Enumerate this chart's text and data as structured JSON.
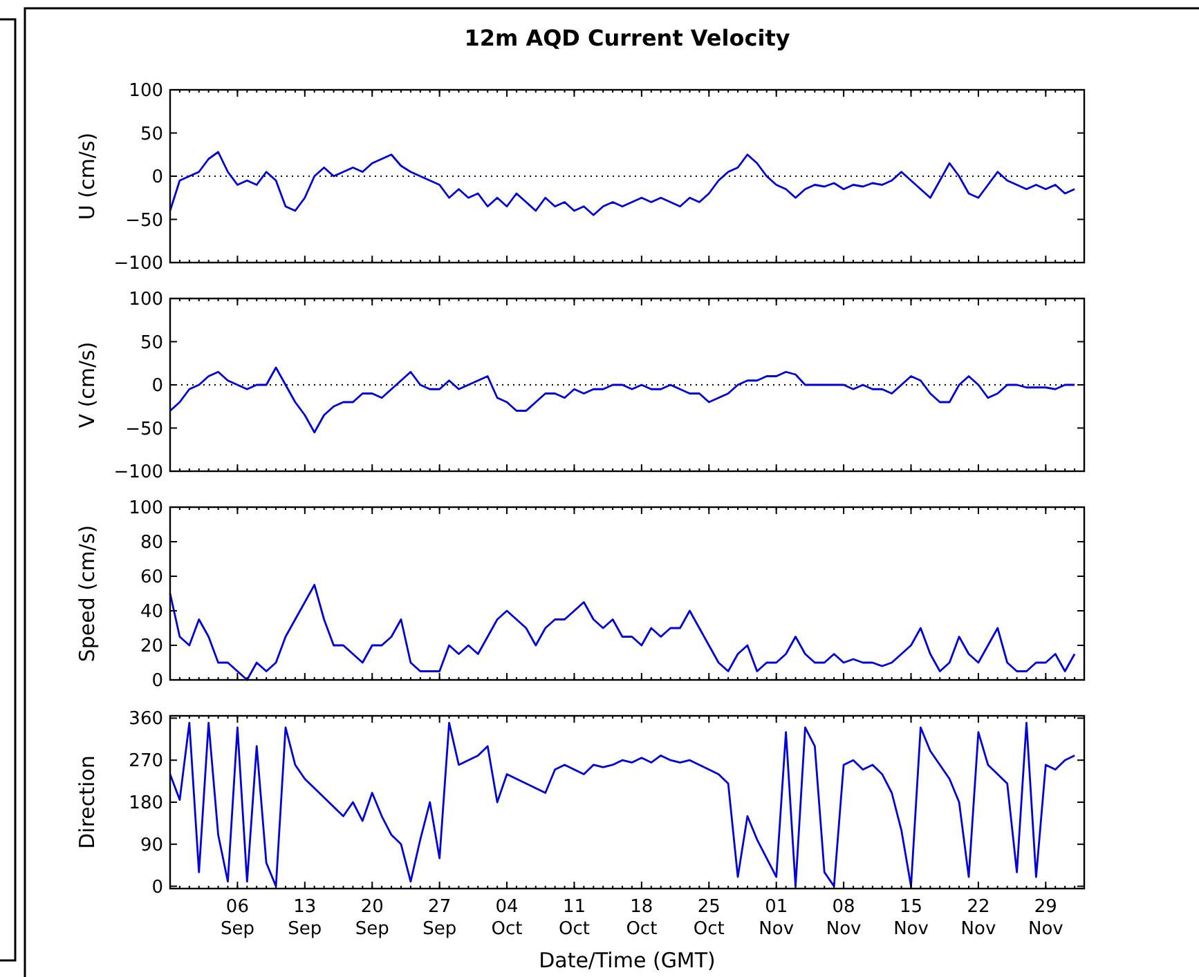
{
  "chart_data": [
    {
      "type": "line",
      "title": "12m AQD Current Velocity",
      "ylabel": "U (cm/s)",
      "tick_labels": "y",
      "xlim": [
        "--08-30",
        "--12-03"
      ],
      "ylim": [
        -100,
        100
      ],
      "yticks": [
        -100,
        -50,
        0,
        50,
        100
      ],
      "xticks": [
        {
          "value": "--09-06",
          "label": null
        },
        {
          "value": "--09-13",
          "label": null
        },
        {
          "value": "--09-20",
          "label": null
        },
        {
          "value": "--09-27",
          "label": null
        },
        {
          "value": "--10-04",
          "label": null
        },
        {
          "value": "--10-11",
          "label": null
        },
        {
          "value": "--10-18",
          "label": null
        },
        {
          "value": "--10-25",
          "label": null
        },
        {
          "value": "--11-01",
          "label": null
        },
        {
          "value": "--11-08",
          "label": null
        },
        {
          "value": "--11-15",
          "label": null
        },
        {
          "value": "--11-22",
          "label": null
        },
        {
          "value": "--11-29",
          "label": null
        }
      ],
      "ref_lines": [
        {
          "axis": "y",
          "value": 0,
          "line_style": "dotted",
          "color": "#000000"
        }
      ],
      "x": [
        "--08-30",
        "--08-31",
        "--09-01",
        "--09-02",
        "--09-03",
        "--09-04",
        "--09-05",
        "--09-06",
        "--09-07",
        "--09-08",
        "--09-09",
        "--09-10",
        "--09-11",
        "--09-12",
        "--09-13",
        "--09-14",
        "--09-15",
        "--09-16",
        "--09-17",
        "--09-18",
        "--09-19",
        "--09-20",
        "--09-21",
        "--09-22",
        "--09-23",
        "--09-24",
        "--09-25",
        "--09-26",
        "--09-27",
        "--09-28",
        "--09-29",
        "--09-30",
        "--10-01",
        "--10-02",
        "--10-03",
        "--10-04",
        "--10-05",
        "--10-06",
        "--10-07",
        "--10-08",
        "--10-09",
        "--10-10",
        "--10-11",
        "--10-12",
        "--10-13",
        "--10-14",
        "--10-15",
        "--10-16",
        "--10-17",
        "--10-18",
        "--10-19",
        "--10-20",
        "--10-21",
        "--10-22",
        "--10-23",
        "--10-24",
        "--10-25",
        "--10-26",
        "--10-27",
        "--10-28",
        "--10-29",
        "--10-30",
        "--10-31",
        "--11-01",
        "--11-02",
        "--11-03",
        "--11-04",
        "--11-05",
        "--11-06",
        "--11-07",
        "--11-08",
        "--11-09",
        "--11-10",
        "--11-11",
        "--11-12",
        "--11-13",
        "--11-14",
        "--11-15",
        "--11-16",
        "--11-17",
        "--11-18",
        "--11-19",
        "--11-20",
        "--11-21",
        "--11-22",
        "--11-23",
        "--11-24",
        "--11-25",
        "--11-26",
        "--11-27",
        "--11-28",
        "--11-29",
        "--11-30",
        "--12-01",
        "--12-02"
      ],
      "series": [
        {
          "color": "#0000dd",
          "values": [
            -40,
            -5,
            0,
            5,
            20,
            28,
            5,
            -10,
            -5,
            -10,
            5,
            -5,
            -35,
            -40,
            -25,
            0,
            10,
            0,
            5,
            10,
            5,
            15,
            20,
            25,
            12,
            5,
            0,
            -5,
            -10,
            -25,
            -15,
            -25,
            -20,
            -35,
            -25,
            -35,
            -20,
            -30,
            -40,
            -25,
            -35,
            -30,
            -40,
            -35,
            -45,
            -35,
            -30,
            -35,
            -30,
            -25,
            -30,
            -25,
            -30,
            -35,
            -25,
            -30,
            -20,
            -5,
            5,
            10,
            25,
            15,
            0,
            -10,
            -15,
            -25,
            -15,
            -10,
            -12,
            -8,
            -15,
            -10,
            -12,
            -8,
            -10,
            -5,
            5,
            -5,
            -15,
            -25,
            -5,
            15,
            0,
            -20,
            -25,
            -10,
            5,
            -5,
            -10,
            -15,
            -10,
            -15,
            -10,
            -20,
            -15
          ]
        }
      ]
    },
    {
      "type": "line",
      "ylabel": "V (cm/s)",
      "tick_labels": "y",
      "xlim": [
        "--08-30",
        "--12-03"
      ],
      "ylim": [
        -100,
        100
      ],
      "yticks": [
        -100,
        -50,
        0,
        50,
        100
      ],
      "xticks": [
        {
          "value": "--09-06",
          "label": null
        },
        {
          "value": "--09-13",
          "label": null
        },
        {
          "value": "--09-20",
          "label": null
        },
        {
          "value": "--09-27",
          "label": null
        },
        {
          "value": "--10-04",
          "label": null
        },
        {
          "value": "--10-11",
          "label": null
        },
        {
          "value": "--10-18",
          "label": null
        },
        {
          "value": "--10-25",
          "label": null
        },
        {
          "value": "--11-01",
          "label": null
        },
        {
          "value": "--11-08",
          "label": null
        },
        {
          "value": "--11-15",
          "label": null
        },
        {
          "value": "--11-22",
          "label": null
        },
        {
          "value": "--11-29",
          "label": null
        }
      ],
      "ref_lines": [
        {
          "axis": "y",
          "value": 0,
          "line_style": "dotted",
          "color": "#000000"
        }
      ],
      "x": [
        "--08-30",
        "--08-31",
        "--09-01",
        "--09-02",
        "--09-03",
        "--09-04",
        "--09-05",
        "--09-06",
        "--09-07",
        "--09-08",
        "--09-09",
        "--09-10",
        "--09-11",
        "--09-12",
        "--09-13",
        "--09-14",
        "--09-15",
        "--09-16",
        "--09-17",
        "--09-18",
        "--09-19",
        "--09-20",
        "--09-21",
        "--09-22",
        "--09-23",
        "--09-24",
        "--09-25",
        "--09-26",
        "--09-27",
        "--09-28",
        "--09-29",
        "--09-30",
        "--10-01",
        "--10-02",
        "--10-03",
        "--10-04",
        "--10-05",
        "--10-06",
        "--10-07",
        "--10-08",
        "--10-09",
        "--10-10",
        "--10-11",
        "--10-12",
        "--10-13",
        "--10-14",
        "--10-15",
        "--10-16",
        "--10-17",
        "--10-18",
        "--10-19",
        "--10-20",
        "--10-21",
        "--10-22",
        "--10-23",
        "--10-24",
        "--10-25",
        "--10-26",
        "--10-27",
        "--10-28",
        "--10-29",
        "--10-30",
        "--10-31",
        "--11-01",
        "--11-02",
        "--11-03",
        "--11-04",
        "--11-05",
        "--11-06",
        "--11-07",
        "--11-08",
        "--11-09",
        "--11-10",
        "--11-11",
        "--11-12",
        "--11-13",
        "--11-14",
        "--11-15",
        "--11-16",
        "--11-17",
        "--11-18",
        "--11-19",
        "--11-20",
        "--11-21",
        "--11-22",
        "--11-23",
        "--11-24",
        "--11-25",
        "--11-26",
        "--11-27",
        "--11-28",
        "--11-29",
        "--11-30",
        "--12-01",
        "--12-02"
      ],
      "series": [
        {
          "color": "#0000dd",
          "values": [
            -30,
            -20,
            -5,
            0,
            10,
            15,
            5,
            0,
            -5,
            0,
            0,
            20,
            0,
            -20,
            -35,
            -55,
            -35,
            -25,
            -20,
            -20,
            -10,
            -10,
            -15,
            -5,
            5,
            15,
            0,
            -5,
            -5,
            5,
            -5,
            0,
            5,
            10,
            -15,
            -20,
            -30,
            -30,
            -20,
            -10,
            -10,
            -15,
            -5,
            -10,
            -5,
            -5,
            0,
            0,
            -5,
            0,
            -5,
            -5,
            0,
            -5,
            -10,
            -10,
            -20,
            -15,
            -10,
            0,
            5,
            5,
            10,
            10,
            15,
            12,
            0,
            0,
            0,
            0,
            0,
            -5,
            0,
            -5,
            -5,
            -10,
            0,
            10,
            5,
            -10,
            -20,
            -20,
            0,
            10,
            0,
            -15,
            -10,
            0,
            0,
            -3,
            -3,
            -3,
            -5,
            0,
            0
          ]
        }
      ]
    },
    {
      "type": "line",
      "ylabel": "Speed (cm/s)",
      "tick_labels": "y",
      "xlim": [
        "--08-30",
        "--12-03"
      ],
      "ylim": [
        0,
        100
      ],
      "yticks": [
        0,
        20,
        40,
        60,
        80,
        100
      ],
      "xticks": [
        {
          "value": "--09-06",
          "label": null
        },
        {
          "value": "--09-13",
          "label": null
        },
        {
          "value": "--09-20",
          "label": null
        },
        {
          "value": "--09-27",
          "label": null
        },
        {
          "value": "--10-04",
          "label": null
        },
        {
          "value": "--10-11",
          "label": null
        },
        {
          "value": "--10-18",
          "label": null
        },
        {
          "value": "--10-25",
          "label": null
        },
        {
          "value": "--11-01",
          "label": null
        },
        {
          "value": "--11-08",
          "label": null
        },
        {
          "value": "--11-15",
          "label": null
        },
        {
          "value": "--11-22",
          "label": null
        },
        {
          "value": "--11-29",
          "label": null
        }
      ],
      "x": [
        "--08-30",
        "--08-31",
        "--09-01",
        "--09-02",
        "--09-03",
        "--09-04",
        "--09-05",
        "--09-06",
        "--09-07",
        "--09-08",
        "--09-09",
        "--09-10",
        "--09-11",
        "--09-12",
        "--09-13",
        "--09-14",
        "--09-15",
        "--09-16",
        "--09-17",
        "--09-18",
        "--09-19",
        "--09-20",
        "--09-21",
        "--09-22",
        "--09-23",
        "--09-24",
        "--09-25",
        "--09-26",
        "--09-27",
        "--09-28",
        "--09-29",
        "--09-30",
        "--10-01",
        "--10-02",
        "--10-03",
        "--10-04",
        "--10-05",
        "--10-06",
        "--10-07",
        "--10-08",
        "--10-09",
        "--10-10",
        "--10-11",
        "--10-12",
        "--10-13",
        "--10-14",
        "--10-15",
        "--10-16",
        "--10-17",
        "--10-18",
        "--10-19",
        "--10-20",
        "--10-21",
        "--10-22",
        "--10-23",
        "--10-24",
        "--10-25",
        "--10-26",
        "--10-27",
        "--10-28",
        "--10-29",
        "--10-30",
        "--10-31",
        "--11-01",
        "--11-02",
        "--11-03",
        "--11-04",
        "--11-05",
        "--11-06",
        "--11-07",
        "--11-08",
        "--11-09",
        "--11-10",
        "--11-11",
        "--11-12",
        "--11-13",
        "--11-14",
        "--11-15",
        "--11-16",
        "--11-17",
        "--11-18",
        "--11-19",
        "--11-20",
        "--11-21",
        "--11-22",
        "--11-23",
        "--11-24",
        "--11-25",
        "--11-26",
        "--11-27",
        "--11-28",
        "--11-29",
        "--11-30",
        "--12-01",
        "--12-02"
      ],
      "series": [
        {
          "color": "#0000dd",
          "values": [
            50,
            25,
            20,
            35,
            25,
            10,
            10,
            5,
            0,
            10,
            5,
            10,
            25,
            35,
            45,
            55,
            35,
            20,
            20,
            15,
            10,
            20,
            20,
            25,
            35,
            10,
            5,
            5,
            5,
            20,
            15,
            20,
            15,
            25,
            35,
            40,
            35,
            30,
            20,
            30,
            35,
            35,
            40,
            45,
            35,
            30,
            35,
            25,
            25,
            20,
            30,
            25,
            30,
            30,
            40,
            30,
            20,
            10,
            5,
            15,
            20,
            5,
            10,
            10,
            15,
            25,
            15,
            10,
            10,
            15,
            10,
            12,
            10,
            10,
            8,
            10,
            15,
            20,
            30,
            15,
            5,
            10,
            25,
            15,
            10,
            20,
            30,
            10,
            5,
            5,
            10,
            10,
            15,
            5,
            15
          ]
        }
      ]
    },
    {
      "type": "line",
      "ylabel": "Direction",
      "xlabel": "Date/Time (GMT)",
      "xlim": [
        "--08-30",
        "--12-03"
      ],
      "ylim": [
        -5,
        365
      ],
      "yticks": [
        0,
        90,
        180,
        270,
        360
      ],
      "xticks": [
        {
          "value": "--09-06",
          "label": "06 Sep"
        },
        {
          "value": "--09-13",
          "label": "13 Sep"
        },
        {
          "value": "--09-20",
          "label": "20 Sep"
        },
        {
          "value": "--09-27",
          "label": "27 Sep"
        },
        {
          "value": "--10-04",
          "label": "04 Oct"
        },
        {
          "value": "--10-11",
          "label": "11 Oct"
        },
        {
          "value": "--10-18",
          "label": "18 Oct"
        },
        {
          "value": "--10-25",
          "label": "25 Oct"
        },
        {
          "value": "--11-01",
          "label": "01 Nov"
        },
        {
          "value": "--11-08",
          "label": "08 Nov"
        },
        {
          "value": "--11-15",
          "label": "15 Nov"
        },
        {
          "value": "--11-22",
          "label": "22 Nov"
        },
        {
          "value": "--11-29",
          "label": "29 Nov"
        }
      ],
      "x": [
        "--08-30",
        "--08-31",
        "--09-01",
        "--09-02",
        "--09-03",
        "--09-04",
        "--09-05",
        "--09-06",
        "--09-07",
        "--09-08",
        "--09-09",
        "--09-10",
        "--09-11",
        "--09-12",
        "--09-13",
        "--09-14",
        "--09-15",
        "--09-16",
        "--09-17",
        "--09-18",
        "--09-19",
        "--09-20",
        "--09-21",
        "--09-22",
        "--09-23",
        "--09-24",
        "--09-25",
        "--09-26",
        "--09-27",
        "--09-28",
        "--09-29",
        "--09-30",
        "--10-01",
        "--10-02",
        "--10-03",
        "--10-04",
        "--10-05",
        "--10-06",
        "--10-07",
        "--10-08",
        "--10-09",
        "--10-10",
        "--10-11",
        "--10-12",
        "--10-13",
        "--10-14",
        "--10-15",
        "--10-16",
        "--10-17",
        "--10-18",
        "--10-19",
        "--10-20",
        "--10-21",
        "--10-22",
        "--10-23",
        "--10-24",
        "--10-25",
        "--10-26",
        "--10-27",
        "--10-28",
        "--10-29",
        "--10-30",
        "--10-31",
        "--11-01",
        "--11-02",
        "--11-03",
        "--11-04",
        "--11-05",
        "--11-06",
        "--11-07",
        "--11-08",
        "--11-09",
        "--11-10",
        "--11-11",
        "--11-12",
        "--11-13",
        "--11-14",
        "--11-15",
        "--11-16",
        "--11-17",
        "--11-18",
        "--11-19",
        "--11-20",
        "--11-21",
        "--11-22",
        "--11-23",
        "--11-24",
        "--11-25",
        "--11-26",
        "--11-27",
        "--11-28",
        "--11-29",
        "--11-30",
        "--12-01",
        "--12-02"
      ],
      "series": [
        {
          "color": "#0000dd",
          "values": [
            240,
            185,
            350,
            30,
            350,
            110,
            10,
            340,
            10,
            300,
            50,
            0,
            340,
            260,
            230,
            210,
            190,
            170,
            150,
            180,
            140,
            200,
            150,
            110,
            90,
            10,
            100,
            180,
            60,
            350,
            260,
            270,
            280,
            300,
            180,
            240,
            230,
            220,
            210,
            200,
            250,
            260,
            250,
            240,
            260,
            255,
            260,
            270,
            265,
            275,
            265,
            280,
            270,
            265,
            270,
            260,
            250,
            240,
            220,
            20,
            150,
            100,
            60,
            20,
            330,
            0,
            340,
            300,
            30,
            0,
            260,
            270,
            250,
            260,
            240,
            200,
            120,
            0,
            340,
            290,
            260,
            230,
            180,
            20,
            330,
            260,
            240,
            220,
            30,
            350,
            20,
            260,
            250,
            270,
            280
          ]
        }
      ]
    }
  ]
}
